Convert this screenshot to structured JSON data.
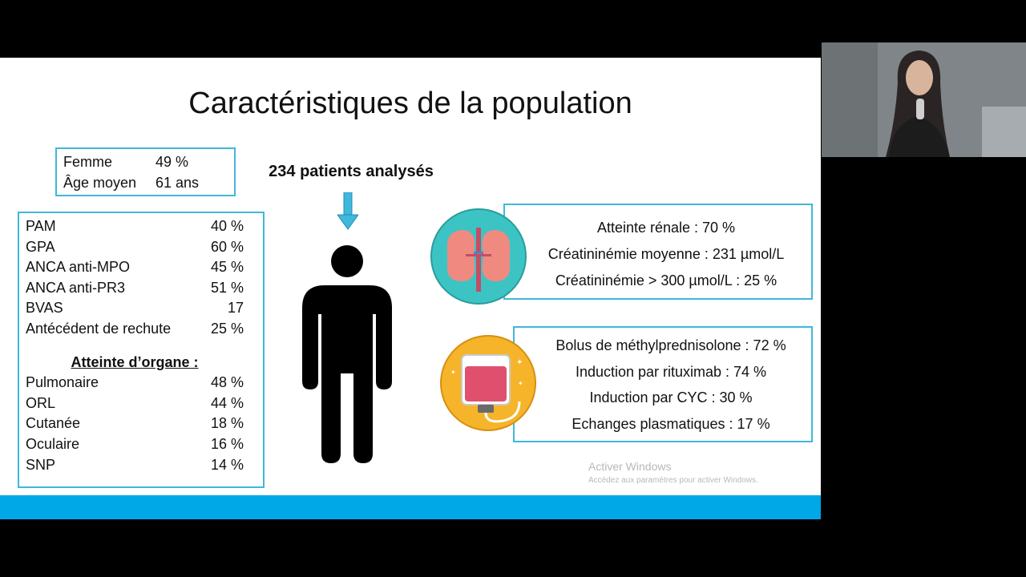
{
  "slide": {
    "title": "Caractéristiques de la population",
    "demographics": [
      {
        "label": "Femme",
        "value": "49 %"
      },
      {
        "label": "Âge moyen",
        "value": "61 ans"
      }
    ],
    "stats": [
      {
        "label": "PAM",
        "value": "40 %"
      },
      {
        "label": "GPA",
        "value": "60 %"
      },
      {
        "label": "ANCA anti-MPO",
        "value": "45 %"
      },
      {
        "label": "ANCA anti-PR3",
        "value": "51 %"
      },
      {
        "label": "BVAS",
        "value": "17"
      },
      {
        "label": "Antécédent de rechute",
        "value": "25 %"
      }
    ],
    "organ_heading": "Atteinte  d’organe :",
    "organs": [
      {
        "label": "Pulmonaire",
        "value": "48 %"
      },
      {
        "label": "ORL",
        "value": "44 %"
      },
      {
        "label": "Cutanée",
        "value": "18 %"
      },
      {
        "label": "Oculaire",
        "value": "16 %"
      },
      {
        "label": "SNP",
        "value": "14 %"
      }
    ],
    "patients_label": "234 patients analysés",
    "renal_lines": [
      "Atteinte rénale : 70 %",
      "Créatininémie moyenne : 231 µmol/L",
      "Créatininémie > 300 µmol/L : 25 %"
    ],
    "treatment_lines": [
      "Bolus de méthylprednisolone : 72 %",
      "Induction par rituximab : 74 %",
      "Induction par CYC : 30 %",
      "Echanges plasmatiques : 17 %"
    ],
    "watermark": {
      "line1": "Activer Windows",
      "line2": "Accédez aux paramètres pour activer Windows."
    },
    "colors": {
      "accent": "#41b7da",
      "bar": "#00a8e8",
      "kidney_bg": "#3cc4c4",
      "bag_bg": "#f6b42a"
    },
    "icons": [
      "kidney-icon",
      "iv-bag-icon",
      "person-icon",
      "down-arrow-icon"
    ]
  }
}
